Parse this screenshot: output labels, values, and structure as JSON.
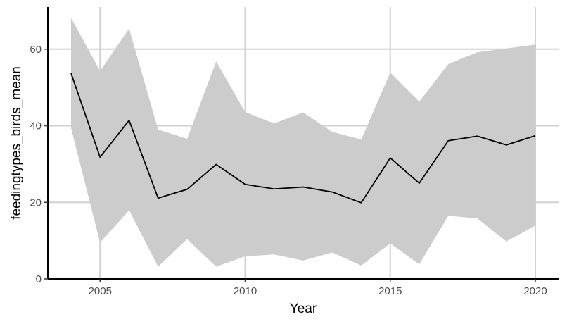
{
  "chart_data": {
    "type": "line",
    "title": "",
    "xlabel": "Year",
    "ylabel": "feedingtypes_birds_mean",
    "xlim": [
      2003.2,
      2020.8
    ],
    "ylim": [
      0,
      71
    ],
    "x_ticks": [
      2005,
      2010,
      2015,
      2020
    ],
    "y_ticks": [
      0,
      20,
      40,
      60
    ],
    "grid": true,
    "legend": "none",
    "colors": {
      "line": "#000000",
      "band": "#cccccc",
      "grid": "#d0d0d0"
    },
    "x": [
      2004,
      2005,
      2006,
      2007,
      2008,
      2009,
      2010,
      2011,
      2012,
      2013,
      2014,
      2015,
      2016,
      2017,
      2018,
      2019,
      2020
    ],
    "series": [
      {
        "values": [
          53.7,
          31.8,
          41.4,
          21.1,
          23.4,
          29.9,
          24.7,
          23.5,
          24.0,
          22.7,
          19.9,
          31.6,
          25.0,
          36.1,
          37.3,
          35.0,
          37.4
        ],
        "upper": [
          68.2,
          54.3,
          65.4,
          39.0,
          36.6,
          56.8,
          43.6,
          40.6,
          43.5,
          38.4,
          36.4,
          53.9,
          46.3,
          56.1,
          59.2,
          60.2,
          61.2
        ],
        "lower": [
          39.4,
          9.5,
          17.9,
          3.2,
          10.4,
          3.2,
          5.9,
          6.4,
          4.8,
          6.9,
          3.5,
          9.3,
          3.8,
          16.5,
          15.8,
          9.8,
          13.9
        ]
      }
    ]
  }
}
